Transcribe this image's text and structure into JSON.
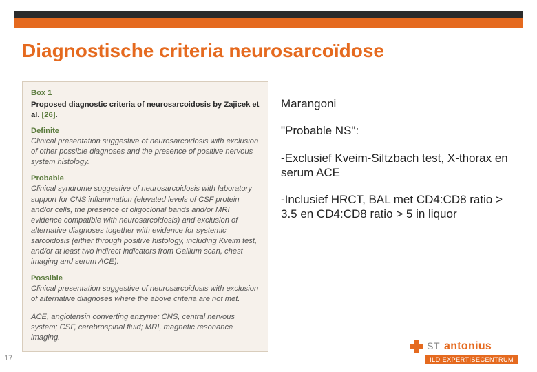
{
  "header": {
    "black_bar_color": "#2b2b2b",
    "orange_bar_color": "#e56a1f"
  },
  "title": "Diagnostische criteria neurosarcoïdose",
  "box1": {
    "label": "Box 1",
    "subtitle_prefix": "Proposed diagnostic criteria of neurosarcoidosis by Zajicek et al. ",
    "ref": "[26]",
    "subtitle_suffix": ".",
    "sections": [
      {
        "head": "Definite",
        "body": "Clinical presentation suggestive of neurosarcoidosis with exclusion of other possible diagnoses and the presence of positive nervous system histology."
      },
      {
        "head": "Probable",
        "body": "Clinical syndrome suggestive of neurosarcoidosis with laboratory support for CNS inflammation (elevated levels of CSF protein and/or cells, the presence of oligoclonal bands and/or MRI evidence compatible with neurosarcoidosis) and exclusion of alternative diagnoses together with evidence for systemic sarcoidosis (either through positive histology, including Kveim test, and/or at least two indirect indicators from Gallium scan, chest imaging and serum ACE)."
      },
      {
        "head": "Possible",
        "body": "Clinical presentation suggestive of neurosarcoidosis with exclusion of alternative diagnoses where the above criteria are not met."
      }
    ],
    "abbrev": "ACE, angiotensin converting enzyme; CNS, central nervous system; CSF, cerebrospinal fluid; MRI, magnetic resonance imaging."
  },
  "right": {
    "heading": "Marangoni",
    "line1": "\"Probable NS\":",
    "line2": "-Exclusief Kveim-Siltzbach test, X-thorax en serum ACE",
    "line3": "-Inclusief HRCT, BAL met CD4:CD8 ratio > 3.5 en CD4:CD8 ratio > 5 in liquor"
  },
  "page_number": "17",
  "logo": {
    "st": "ST",
    "name": "antonius",
    "sub": "ILD EXPERTISECENTRUM"
  }
}
